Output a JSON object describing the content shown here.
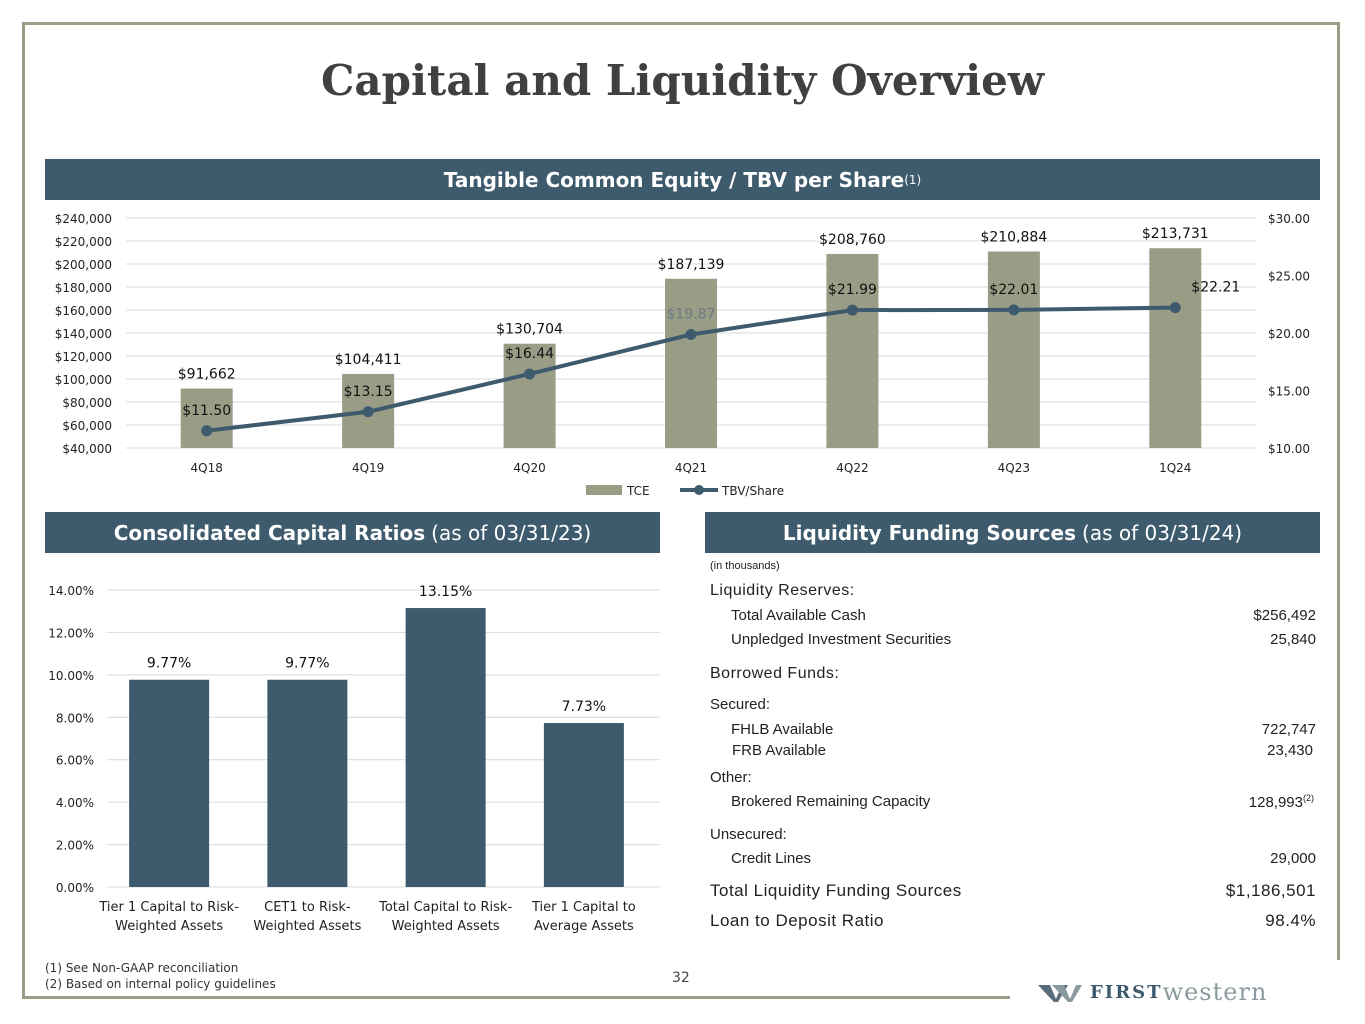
{
  "page_title": "Capital and Liquidity Overview",
  "tce_section": {
    "title": "Tangible Common Equity / TBV per Share",
    "sup": "(1)"
  },
  "capital_section": {
    "title_bold": "Consolidated Capital Ratios",
    "title_light": "(as of 03/31/23)"
  },
  "liquidity_section": {
    "title_bold": "Liquidity Funding Sources",
    "title_light": "(as of 03/31/24)"
  },
  "chart_data": [
    {
      "type": "bar",
      "title": "Tangible Common Equity / TBV per Share",
      "categories": [
        "4Q18",
        "4Q19",
        "4Q20",
        "4Q21",
        "4Q22",
        "4Q23",
        "1Q24"
      ],
      "series": [
        {
          "name": "TCE",
          "type": "bar",
          "axis": "left",
          "color": "#9a9d86",
          "values": [
            91662,
            104411,
            130704,
            187139,
            208760,
            210884,
            213731
          ],
          "labels": [
            "$91,662",
            "$104,411",
            "$130,704",
            "$187,139",
            "$208,760",
            "$210,884",
            "$213,731"
          ]
        },
        {
          "name": "TBV/Share",
          "type": "line",
          "axis": "right",
          "color": "#3e5b6e",
          "values": [
            11.5,
            13.15,
            16.44,
            19.87,
            21.99,
            22.01,
            22.21
          ],
          "labels": [
            "$11.50",
            "$13.15",
            "$16.44",
            "$19.87",
            "$21.99",
            "$22.01",
            "$22.21"
          ]
        }
      ],
      "ylim": [
        40000,
        240000
      ],
      "y_ticks": [
        "$40,000",
        "$60,000",
        "$80,000",
        "$100,000",
        "$120,000",
        "$140,000",
        "$160,000",
        "$180,000",
        "$200,000",
        "$220,000",
        "$240,000"
      ],
      "y2lim": [
        10,
        30
      ],
      "y2_ticks": [
        "$10.00",
        "$15.00",
        "$20.00",
        "$25.00",
        "$30.00"
      ],
      "legend": [
        "TCE",
        "TBV/Share"
      ],
      "legend_position": "bottom",
      "grid": true
    },
    {
      "type": "bar",
      "title": "Consolidated Capital Ratios",
      "categories": [
        "Tier 1 Capital to Risk-Weighted Assets",
        "CET1 to Risk-Weighted Assets",
        "Total Capital to Risk-Weighted Assets",
        "Tier 1 Capital to Average Assets"
      ],
      "category_lines": [
        [
          "Tier 1 Capital to Risk-",
          "Weighted Assets"
        ],
        [
          "CET1 to Risk-",
          "Weighted Assets"
        ],
        [
          "Total Capital to Risk-",
          "Weighted Assets"
        ],
        [
          "Tier 1 Capital to",
          "Average Assets"
        ]
      ],
      "values": [
        9.77,
        9.77,
        13.15,
        7.73
      ],
      "labels": [
        "9.77%",
        "9.77%",
        "13.15%",
        "7.73%"
      ],
      "ylim": [
        0,
        14
      ],
      "y_ticks": [
        "0.00%",
        "2.00%",
        "4.00%",
        "6.00%",
        "8.00%",
        "10.00%",
        "12.00%",
        "14.00%"
      ],
      "color": "#3e5b6e",
      "grid": true
    }
  ],
  "liquidity": {
    "units_note": "(in thousands)",
    "reserves_heading": "Liquidity Reserves:",
    "total_cash_label": "Total Available Cash",
    "total_cash_value": "$256,492",
    "unpledged_label": "Unpledged Investment Securities",
    "unpledged_value": "25,840",
    "borrowed_heading": "Borrowed Funds:",
    "secured_heading": "Secured:",
    "fhlb_label": "FHLB Available",
    "fhlb_value": "722,747",
    "frb_label": "FRB Available",
    "frb_value": "23,430",
    "other_heading": "Other:",
    "brokered_label": "Brokered Remaining Capacity",
    "brokered_value": "128,993",
    "brokered_sup": "(2)",
    "unsecured_heading": "Unsecured:",
    "credit_label": "Credit Lines",
    "credit_value": "29,000",
    "total_label": "Total Liquidity Funding Sources",
    "total_value": "$1,186,501",
    "ltd_label": "Loan to Deposit Ratio",
    "ltd_value": "98.4%"
  },
  "footnotes": [
    "(1) See Non-GAAP reconciliation",
    "(2) Based on internal policy guidelines"
  ],
  "page_number": "32",
  "logo": {
    "word1": "FIRST",
    "word2": "western"
  }
}
